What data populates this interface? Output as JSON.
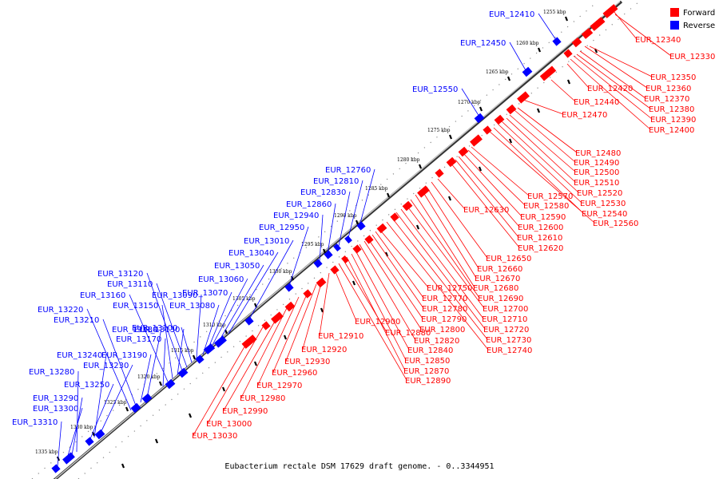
{
  "title": "Eubacterium rectale DSM 17629 draft genome. - 0..3344951",
  "legend": [
    {
      "label": "Forward",
      "color": "#ff0000"
    },
    {
      "label": "Reverse",
      "color": "#0000ff"
    }
  ],
  "ticks": [
    "1255 kbp",
    "1260 kbp",
    "1265 kbp",
    "1270 kbp",
    "1275 kbp",
    "1280 kbp",
    "1285 kbp",
    "1290 kbp",
    "1295 kbp",
    "1300 kbp",
    "1305 kbp",
    "1310 kbp",
    "1315 kbp",
    "1320 kbp",
    "1325 kbp",
    "1330 kbp",
    "1335 kbp"
  ],
  "forward_labels": [
    "EUR_12340",
    "EUR_12330",
    "EUR_12350",
    "EUR_12360",
    "EUR_12370",
    "EUR_12380",
    "EUR_12390",
    "EUR_12400",
    "EUR_12420",
    "EUR_12440",
    "EUR_12470",
    "EUR_12480",
    "EUR_12490",
    "EUR_12500",
    "EUR_12510",
    "EUR_12520",
    "EUR_12530",
    "EUR_12540",
    "EUR_12560",
    "EUR_12570",
    "EUR_12580",
    "EUR_12590",
    "EUR_12600",
    "EUR_12610",
    "EUR_12620",
    "EUR_12630",
    "EUR_12650",
    "EUR_12660",
    "EUR_12670",
    "EUR_12680",
    "EUR_12690",
    "EUR_12700",
    "EUR_12710",
    "EUR_12720",
    "EUR_12730",
    "EUR_12740",
    "EUR_12750",
    "EUR_12770",
    "EUR_12780",
    "EUR_12790",
    "EUR_12800",
    "EUR_12820",
    "EUR_12840",
    "EUR_12850",
    "EUR_12870",
    "EUR_12880",
    "EUR_12890",
    "EUR_12900",
    "EUR_12910",
    "EUR_12920",
    "EUR_12930",
    "EUR_12960",
    "EUR_12970",
    "EUR_12980",
    "EUR_12990",
    "EUR_13000",
    "EUR_13030"
  ],
  "reverse_labels": [
    "EUR_12410",
    "EUR_12450",
    "EUR_12550",
    "EUR_12760",
    "EUR_12810",
    "EUR_12830",
    "EUR_12860",
    "EUR_12940",
    "EUR_12950",
    "EUR_13010",
    "EUR_13040",
    "EUR_13050",
    "EUR_13060",
    "EUR_13070",
    "EUR_13080",
    "EUR_13090",
    "EUR_13100",
    "EUR_13110",
    "EUR_13120",
    "EUR_13130",
    "EUR_13150",
    "EUR_13160",
    "EUR_13170",
    "EUR_13180",
    "EUR_13190",
    "EUR_13210",
    "EUR_13220",
    "EUR_13230",
    "EUR_13240",
    "EUR_13250",
    "EUR_13280",
    "EUR_13290",
    "EUR_13300",
    "EUR_13310"
  ]
}
